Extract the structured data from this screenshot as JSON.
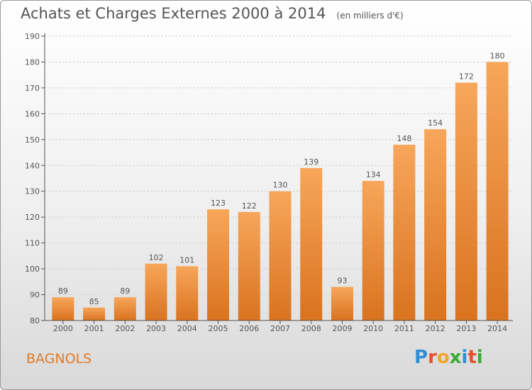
{
  "title": "Achats et Charges Externes 2000 à 2014",
  "subtitle": "(en milliers d'€)",
  "commune": "BAGNOLS",
  "logo": {
    "text": "Proxiti",
    "letters": [
      {
        "ch": "P",
        "color": "#2e8fd6"
      },
      {
        "ch": "r",
        "color": "#e8502c"
      },
      {
        "ch": "o",
        "color": "#f2a52a"
      },
      {
        "ch": "x",
        "color": "#3aaa35"
      },
      {
        "ch": "i",
        "color": "#2e8fd6"
      },
      {
        "ch": "t",
        "color": "#e8502c"
      },
      {
        "ch": "i",
        "color": "#3aaa35"
      }
    ]
  },
  "colors": {
    "bar_top": "#f7a65a",
    "bar_bottom": "#d9731f",
    "text": "#555555",
    "grid": "#c8c8c8"
  },
  "chart_data": {
    "type": "bar",
    "categories": [
      "2000",
      "2001",
      "2002",
      "2003",
      "2004",
      "2005",
      "2006",
      "2007",
      "2008",
      "2009",
      "2010",
      "2011",
      "2012",
      "2013",
      "2014"
    ],
    "values": [
      89,
      85,
      89,
      102,
      101,
      123,
      122,
      130,
      139,
      93,
      134,
      148,
      154,
      172,
      180
    ],
    "ylim": [
      80,
      190
    ],
    "yticks": [
      80,
      90,
      100,
      110,
      120,
      130,
      140,
      150,
      160,
      170,
      180,
      190
    ],
    "grid": true,
    "legend": "none"
  }
}
